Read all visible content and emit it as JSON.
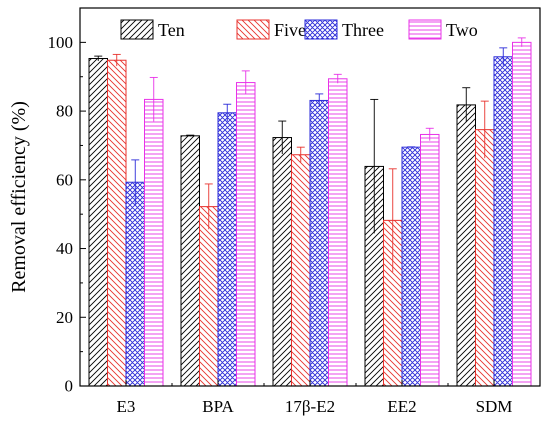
{
  "chart_data": {
    "type": "bar",
    "title": "",
    "xlabel": "",
    "ylabel": "Removal efficiency (%)",
    "ylim": [
      0,
      110
    ],
    "yticks": [
      0,
      20,
      40,
      60,
      80,
      100
    ],
    "categories": [
      "E3",
      "BPA",
      "17β-E2",
      "EE2",
      "SDM"
    ],
    "legend_position": "top-center",
    "grid": false,
    "series": [
      {
        "name": "Ten",
        "color": "#000000",
        "pattern": "diagonal-hatch",
        "values": [
          95.3,
          72.8,
          72.3,
          63.9,
          81.8
        ],
        "errors": [
          0.7,
          0.2,
          4.8,
          19.5,
          5.0
        ]
      },
      {
        "name": "Five",
        "color": "#e8322d",
        "pattern": "back-diagonal-hatch",
        "values": [
          94.8,
          52.2,
          67.3,
          48.2,
          74.6
        ],
        "errors": [
          1.7,
          6.6,
          2.2,
          15.0,
          8.3
        ]
      },
      {
        "name": "Three",
        "color": "#2a2ad8",
        "pattern": "crosshatch",
        "values": [
          59.3,
          79.5,
          83.1,
          69.5,
          95.8
        ],
        "errors": [
          6.5,
          2.5,
          1.9,
          0.1,
          2.6
        ]
      },
      {
        "name": "Two",
        "color": "#e832e8",
        "pattern": "horizontal-hatch",
        "values": [
          83.4,
          88.3,
          89.4,
          73.2,
          100.0
        ],
        "errors": [
          6.4,
          3.4,
          1.3,
          1.8,
          1.3
        ]
      }
    ]
  }
}
